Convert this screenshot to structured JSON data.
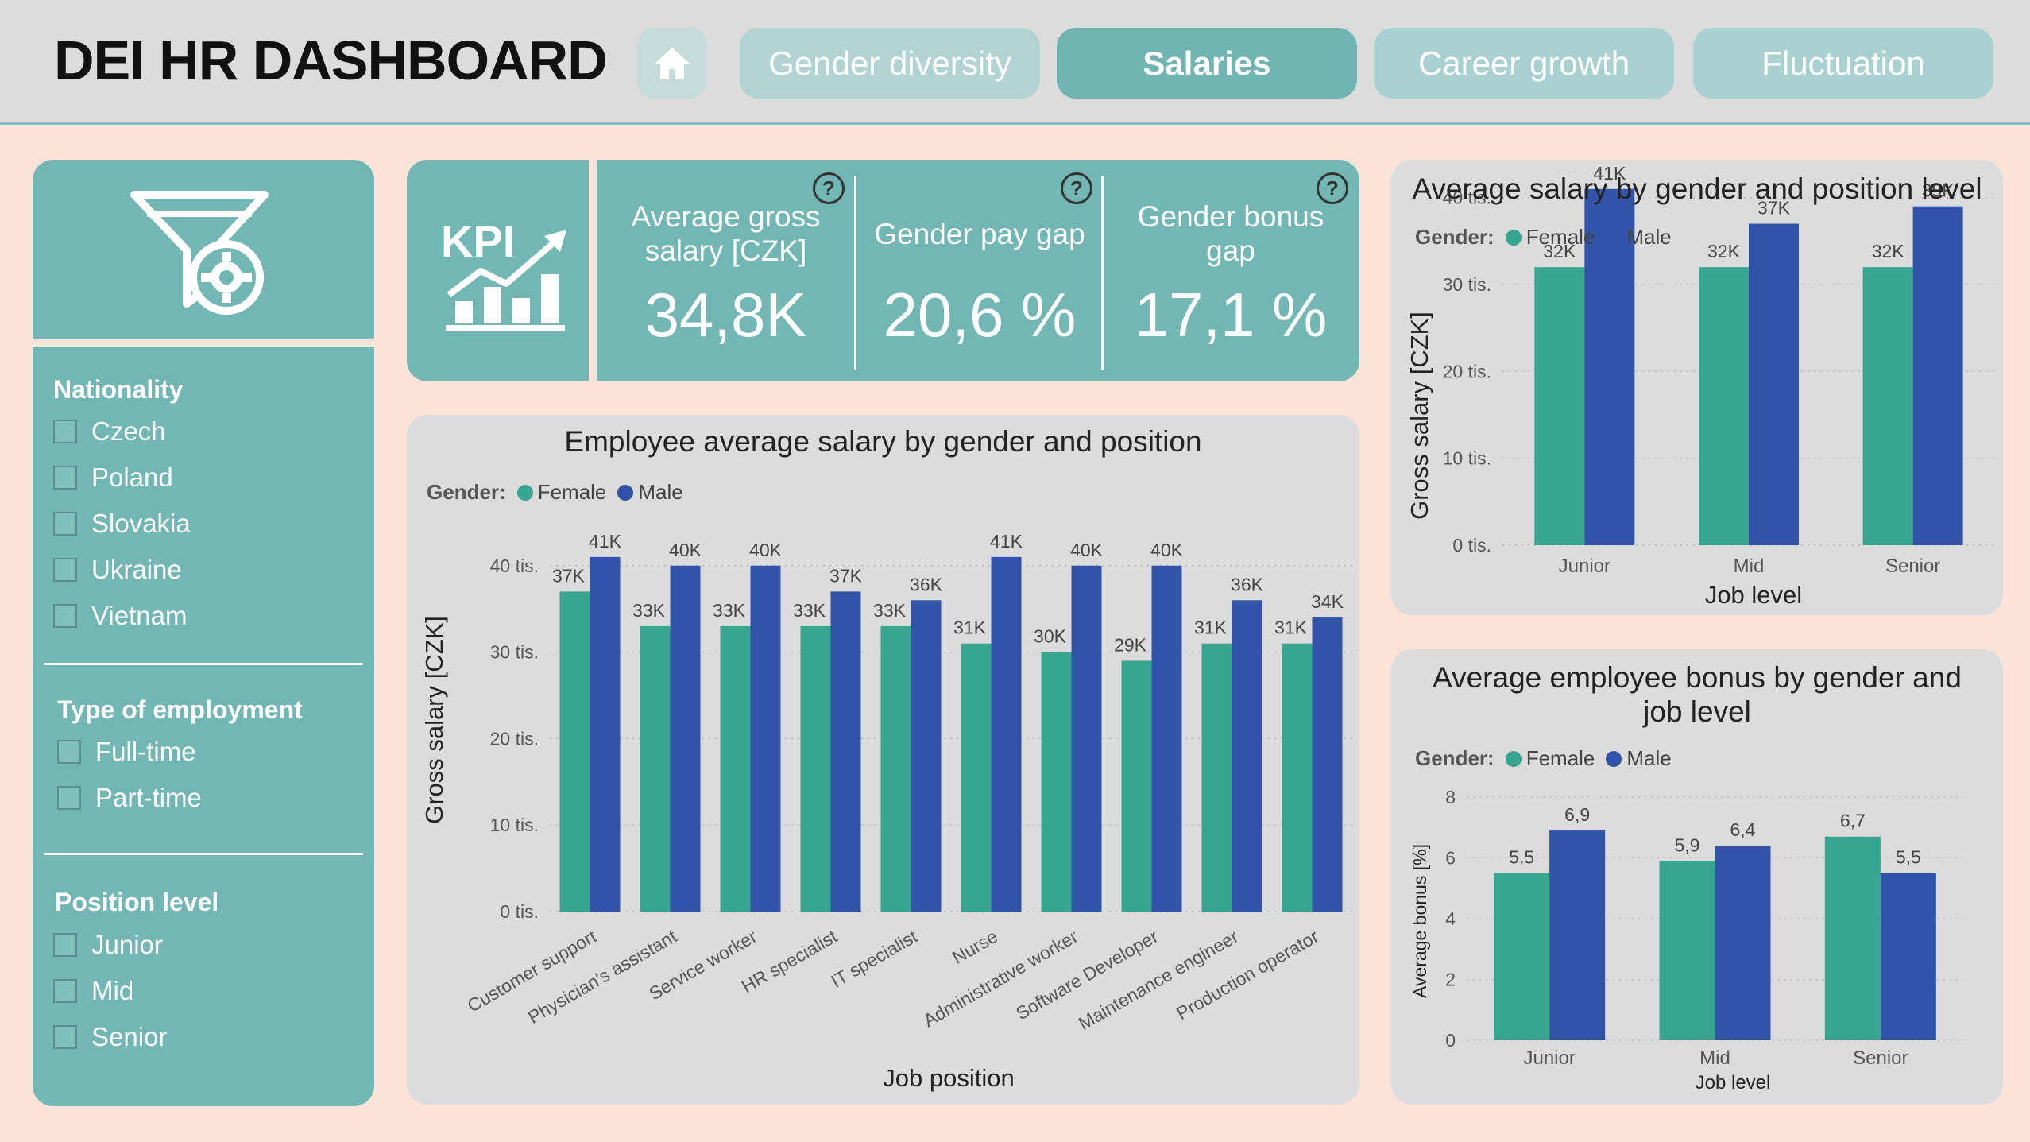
{
  "header": {
    "title": "DEI HR DASHBOARD",
    "home_icon": "home-icon",
    "tabs": [
      {
        "label": "Gender diversity",
        "active": false
      },
      {
        "label": "Salaries",
        "active": true
      },
      {
        "label": "Career growth",
        "active": false
      },
      {
        "label": "Fluctuation",
        "active": false
      }
    ]
  },
  "filters": {
    "icon": "filter-settings-icon",
    "groups": [
      {
        "title": "Nationality",
        "options": [
          "Czech",
          "Poland",
          "Slovakia",
          "Ukraine",
          "Vietnam"
        ]
      },
      {
        "title": "Type of employment",
        "options": [
          "Full-time",
          "Part-time"
        ]
      },
      {
        "title": "Position level",
        "options": [
          "Junior",
          "Mid",
          "Senior"
        ]
      }
    ]
  },
  "kpi": {
    "logo_text": "KPI",
    "cards": [
      {
        "label": "Average gross salary [CZK]",
        "value": "34,8K"
      },
      {
        "label": "Gender pay gap",
        "value": "20,6 %"
      },
      {
        "label": "Gender bonus gap",
        "value": "17,1 %"
      }
    ],
    "help_glyph": "?"
  },
  "colors": {
    "female": "#37a58f",
    "male": "#3254a8",
    "teal": "#72b7b4",
    "header_bg": "#dcdcdc",
    "page_bg": "#fbe3d9"
  },
  "legend": {
    "label": "Gender:",
    "female": "Female",
    "male": "Male"
  },
  "chart_data": [
    {
      "id": "position",
      "type": "bar",
      "title": "Employee average salary by gender and position",
      "xlabel": "Job position",
      "ylabel": "Gross salary [CZK]",
      "ylim": [
        0,
        42000
      ],
      "yticks": [
        0,
        10000,
        20000,
        30000,
        40000
      ],
      "ytick_labels": [
        "0 tis.",
        "10 tis.",
        "20 tis.",
        "30 tis.",
        "40 tis."
      ],
      "categories": [
        "Customer support",
        "Physician's assistant",
        "Service worker",
        "HR specialist",
        "IT specialist",
        "Nurse",
        "Administrative worker",
        "Software Developer",
        "Maintenance engineer",
        "Production operator"
      ],
      "series": [
        {
          "name": "Female",
          "values": [
            37000,
            33000,
            33000,
            33000,
            33000,
            31000,
            30000,
            29000,
            31000,
            31000
          ],
          "labels": [
            "37K",
            "33K",
            "33K",
            "33K",
            "33K",
            "31K",
            "30K",
            "29K",
            "31K",
            "31K"
          ]
        },
        {
          "name": "Male",
          "values": [
            41000,
            40000,
            40000,
            37000,
            36000,
            41000,
            40000,
            40000,
            36000,
            34000
          ],
          "labels": [
            "41K",
            "40K",
            "40K",
            "37K",
            "36K",
            "41K",
            "40K",
            "40K",
            "36K",
            "34K"
          ]
        }
      ],
      "legend_position": "top-left",
      "grid": true
    },
    {
      "id": "level",
      "type": "bar",
      "title": "Average salary by gender and position level",
      "xlabel": "Job level",
      "ylabel": "Gross salary [CZK]",
      "ylim": [
        0,
        44000
      ],
      "yticks": [
        0,
        10000,
        20000,
        30000,
        40000
      ],
      "ytick_labels": [
        "0 tis.",
        "10 tis.",
        "20 tis.",
        "30 tis.",
        "40 tis."
      ],
      "categories": [
        "Junior",
        "Mid",
        "Senior"
      ],
      "series": [
        {
          "name": "Female",
          "values": [
            32000,
            32000,
            32000
          ],
          "labels": [
            "32K",
            "32K",
            "32K"
          ]
        },
        {
          "name": "Male",
          "values": [
            41000,
            37000,
            39000
          ],
          "labels": [
            "41K",
            "37K",
            "39K"
          ]
        }
      ],
      "legend_position": "top-left",
      "grid": true
    },
    {
      "id": "bonus",
      "type": "bar",
      "title": "Average employee bonus by gender and job level",
      "xlabel": "Job level",
      "ylabel": "Average bonus [%]",
      "ylim": [
        0,
        8
      ],
      "yticks": [
        0,
        2,
        4,
        6,
        8
      ],
      "ytick_labels": [
        "0",
        "2",
        "4",
        "6",
        "8"
      ],
      "categories": [
        "Junior",
        "Mid",
        "Senior"
      ],
      "series": [
        {
          "name": "Female",
          "values": [
            5.5,
            5.9,
            6.7
          ],
          "labels": [
            "5,5",
            "5,9",
            "6,7"
          ]
        },
        {
          "name": "Male",
          "values": [
            6.9,
            6.4,
            5.5
          ],
          "labels": [
            "6,9",
            "6,4",
            "5,5"
          ]
        }
      ],
      "legend_position": "top-left",
      "grid": true
    }
  ]
}
